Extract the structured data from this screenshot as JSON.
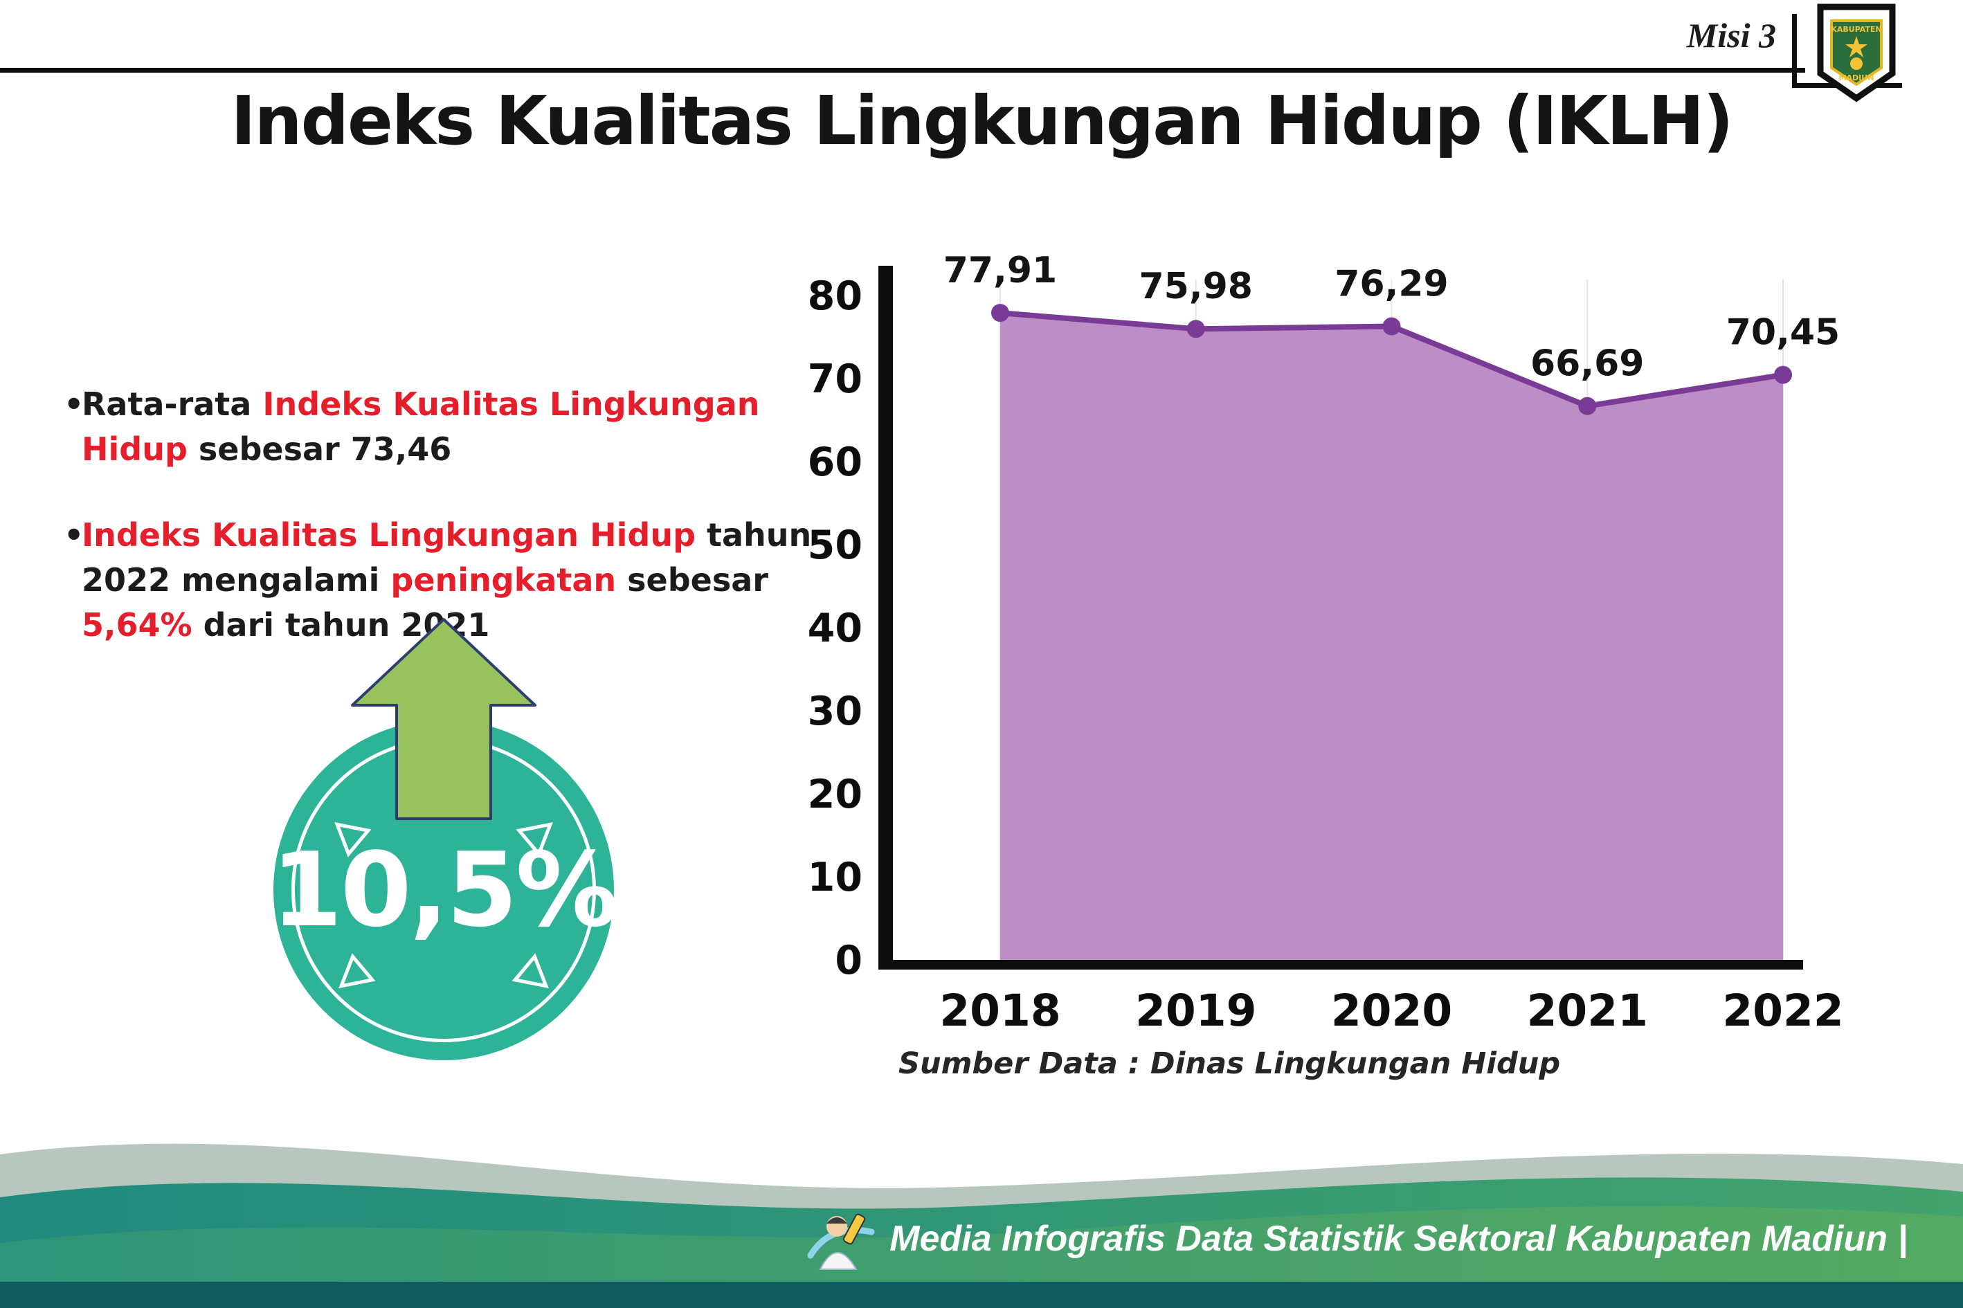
{
  "header": {
    "misi": "Misi 3",
    "title": "Indeks Kualitas Lingkungan Hidup (IKLH)"
  },
  "logo": {
    "top_text": "KABUPATEN",
    "bottom_text": "MADIUN"
  },
  "bullets": [
    {
      "parts": [
        {
          "t": "Rata-rata ",
          "c": "dark"
        },
        {
          "t": "Indeks Kualitas Lingkungan Hidup",
          "c": "red"
        },
        {
          "t": " sebesar 73,46",
          "c": "dark"
        }
      ]
    },
    {
      "parts": [
        {
          "t": "Indeks Kualitas Lingkungan Hidup",
          "c": "red"
        },
        {
          "t": " tahun 2022 mengalami ",
          "c": "dark"
        },
        {
          "t": "peningkatan",
          "c": "red"
        },
        {
          "t": " sebesar ",
          "c": "dark"
        },
        {
          "t": "5,64%",
          "c": "red"
        },
        {
          "t": " dari tahun 2021",
          "c": "dark"
        }
      ]
    }
  ],
  "badge": {
    "value": "10,5%",
    "circle_color": "#2cb398",
    "arrow_color": "#97c25e"
  },
  "colors": {
    "highlight_red": "#e41e2b"
  },
  "chart_data": {
    "type": "area",
    "title": "Indeks Kualitas Lingkungan Hidup (IKLH)",
    "categories": [
      "2018",
      "2019",
      "2020",
      "2021",
      "2022"
    ],
    "values": [
      77.91,
      75.98,
      76.29,
      66.69,
      70.45
    ],
    "point_labels": [
      "77,91",
      "75,98",
      "76,29",
      "66,69",
      "70,45"
    ],
    "ylim": [
      0,
      80
    ],
    "yticks": [
      0,
      10,
      20,
      30,
      40,
      50,
      60,
      70,
      80
    ],
    "grid": "light-vertical",
    "legend": "none",
    "area_color": "#bd8ec6",
    "line_color": "#7a3b96",
    "source": "Sumber Data : Dinas Lingkungan Hidup"
  },
  "footer": {
    "text": "Media Infografis Data Statistik Sektoral Kabupaten Madiun |"
  }
}
